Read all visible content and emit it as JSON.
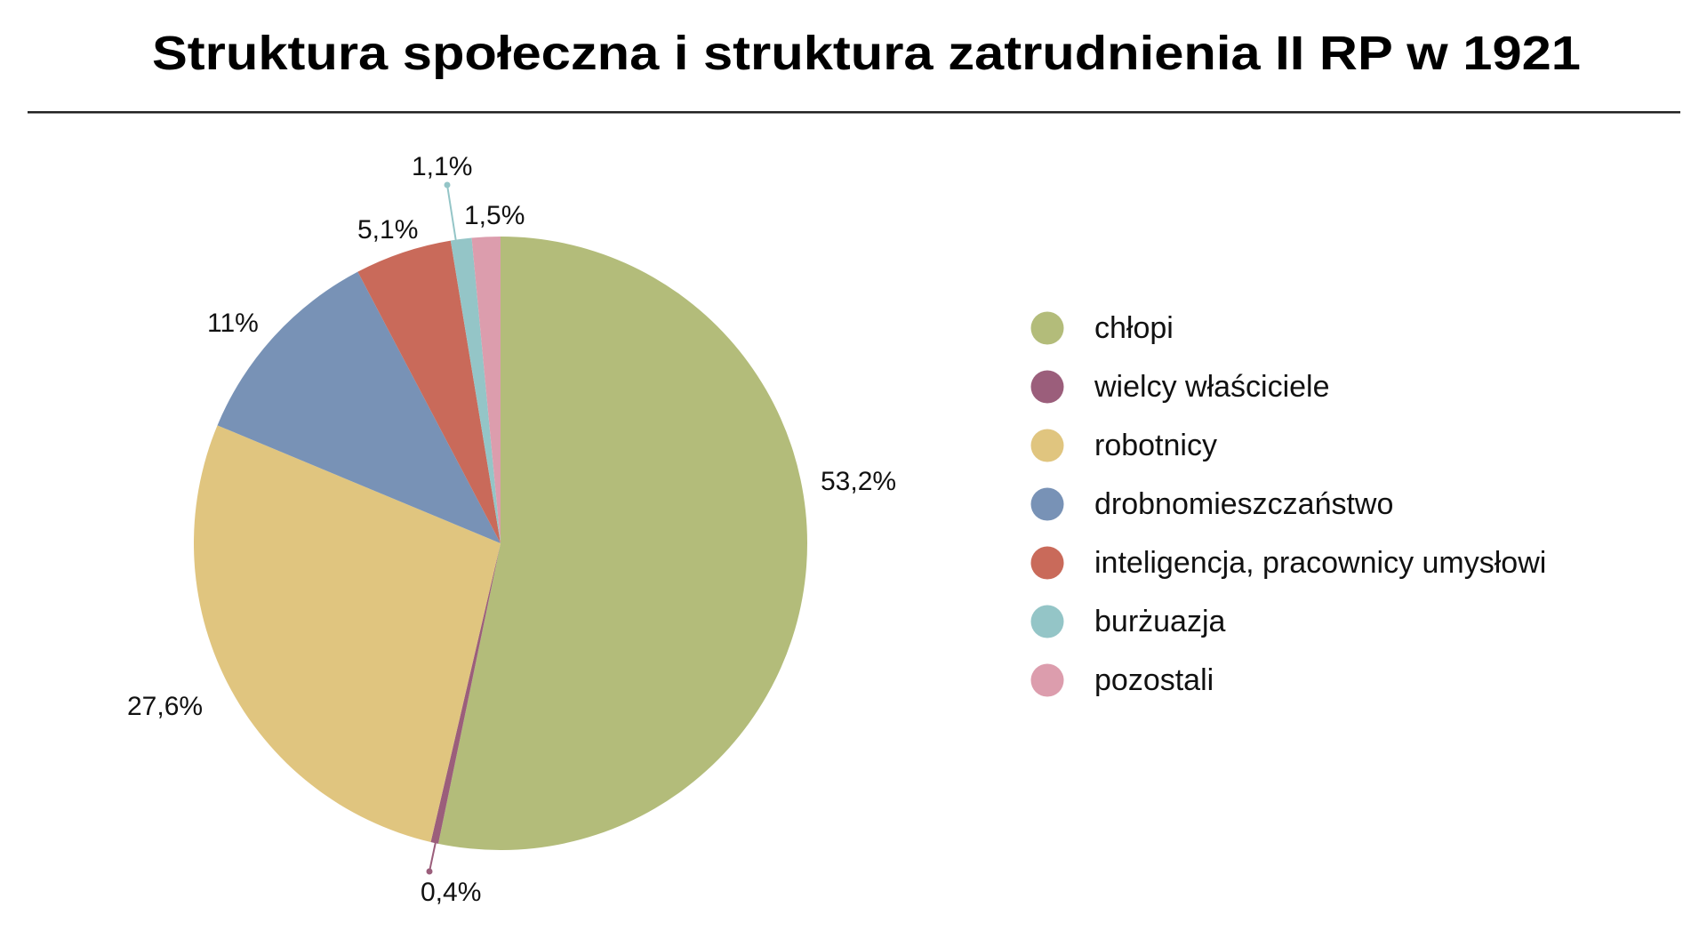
{
  "chart_data": {
    "type": "pie",
    "title": "Struktura społeczna i struktura zatrudnienia II RP w 1921",
    "start_angle": "12 o'clock, clockwise",
    "legend_position": "right",
    "slices": [
      {
        "label": "chłopi",
        "value": 53.2,
        "display": "53,2%",
        "color": "#b3bc7a"
      },
      {
        "label": "wielcy właściciele",
        "value": 0.4,
        "display": "0,4%",
        "color": "#9b5e7b"
      },
      {
        "label": "robotnicy",
        "value": 27.6,
        "display": "27,6%",
        "color": "#e0c57f"
      },
      {
        "label": "drobnomieszczaństwo",
        "value": 11,
        "display": "11%",
        "color": "#7892b6"
      },
      {
        "label": "inteligencja, pracownicy umysłowi",
        "value": 5.1,
        "display": "5,1%",
        "color": "#c96a5a"
      },
      {
        "label": "burżuazja",
        "value": 1.1,
        "display": "1,1%",
        "color": "#94c5c7"
      },
      {
        "label": "pozostali",
        "value": 1.5,
        "display": "1,5%",
        "color": "#dc9dad"
      }
    ]
  }
}
